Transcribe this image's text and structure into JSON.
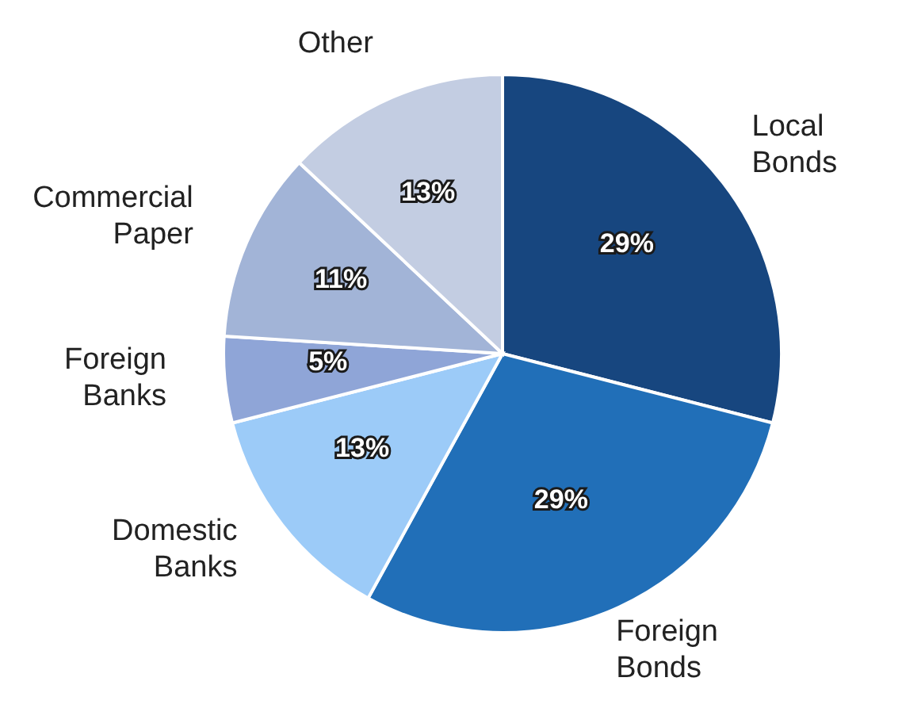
{
  "chart_data": {
    "type": "pie",
    "categories": [
      "Local Bonds",
      "Foreign Bonds",
      "Domestic Banks",
      "Foreign Banks",
      "Commercial Paper",
      "Other"
    ],
    "values": [
      29,
      29,
      13,
      5,
      11,
      13
    ],
    "colors": [
      "#17467f",
      "#216fb8",
      "#9ccbf8",
      "#8fa5d7",
      "#a2b4d7",
      "#c3cde2"
    ],
    "value_labels": [
      "29%",
      "29%",
      "13%",
      "5%",
      "11%",
      "13%"
    ]
  }
}
